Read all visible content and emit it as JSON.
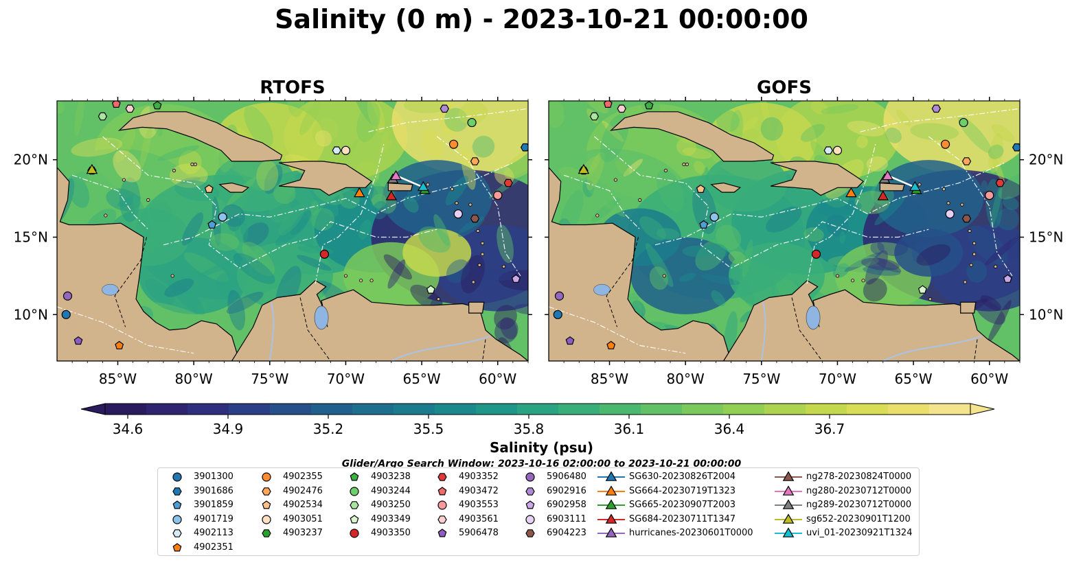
{
  "title": "Salinity (0 m) - 2023-10-21 00:00:00",
  "panels": [
    {
      "title": "RTOFS",
      "variant": "rtofs"
    },
    {
      "title": "GOFS",
      "variant": "gofs"
    }
  ],
  "lat_labels": [
    "10°N",
    "15°N",
    "20°N"
  ],
  "lon_labels": [
    "85°W",
    "80°W",
    "75°W",
    "70°W",
    "65°W",
    "60°W"
  ],
  "colorbar": {
    "label": "Salinity (psu)",
    "vmin": 34.6,
    "vmax": 36.7,
    "ticks": [
      "34.6",
      "34.9",
      "35.2",
      "35.5",
      "35.8",
      "36.1",
      "36.4",
      "36.7"
    ],
    "extend": "both",
    "colors": [
      "#2a1a5e",
      "#2f2470",
      "#2e307d",
      "#2b3f86",
      "#26508a",
      "#21608c",
      "#1e6e8d",
      "#1b7c8d",
      "#1b898b",
      "#209688",
      "#2ba282",
      "#3aae79",
      "#4cb86f",
      "#62c166",
      "#7bc95c",
      "#94cf55",
      "#adD350",
      "#c4d84e",
      "#d9dd56",
      "#eadf6c",
      "#f5e48e"
    ]
  },
  "search_window": "Glider/Argo Search Window: 2023-10-16 02:00:00 to 2023-10-21 00:00:00",
  "colors": {
    "land": "#d2b48c",
    "lake": "#8fb5e2",
    "river": "#a9c3e6",
    "ocean_deep": "#2a1a5e"
  },
  "legend": [
    {
      "label": "3901300",
      "marker": "circle",
      "color": "#1f77b4"
    },
    {
      "label": "3901686",
      "marker": "hexagon",
      "color": "#1f77b4"
    },
    {
      "label": "3901859",
      "marker": "pentagon",
      "color": "#4d9fd6"
    },
    {
      "label": "4901719",
      "marker": "circle",
      "color": "#8dc3ea"
    },
    {
      "label": "4902113",
      "marker": "hexagon",
      "color": "#d6eaf8"
    },
    {
      "label": "4902351",
      "marker": "pentagon",
      "color": "#ff7f0e"
    },
    {
      "label": "4902355",
      "marker": "circle",
      "color": "#ff8c2e"
    },
    {
      "label": "4902476",
      "marker": "hexagon",
      "color": "#ffa85c"
    },
    {
      "label": "4902534",
      "marker": "pentagon",
      "color": "#ffc08a"
    },
    {
      "label": "4903051",
      "marker": "circle",
      "color": "#ffe0c2"
    },
    {
      "label": "4903237",
      "marker": "hexagon",
      "color": "#2ca02c"
    },
    {
      "label": "4903238",
      "marker": "pentagon",
      "color": "#3cb043"
    },
    {
      "label": "4903244",
      "marker": "circle",
      "color": "#6ccf6c"
    },
    {
      "label": "4903250",
      "marker": "hexagon",
      "color": "#a8e6a0"
    },
    {
      "label": "4903349",
      "marker": "pentagon",
      "color": "#d8f5d0"
    },
    {
      "label": "4903350",
      "marker": "circle",
      "color": "#d62728"
    },
    {
      "label": "4903352",
      "marker": "hexagon",
      "color": "#e0393a"
    },
    {
      "label": "4903472",
      "marker": "pentagon",
      "color": "#f06a6a"
    },
    {
      "label": "4903553",
      "marker": "circle",
      "color": "#f79a9a"
    },
    {
      "label": "4903561",
      "marker": "hexagon",
      "color": "#fcd0d0"
    },
    {
      "label": "5906478",
      "marker": "pentagon",
      "color": "#8e5cc2"
    },
    {
      "label": "5906480",
      "marker": "circle",
      "color": "#9467bd"
    },
    {
      "label": "6902916",
      "marker": "hexagon",
      "color": "#b08ad6"
    },
    {
      "label": "6902958",
      "marker": "pentagon",
      "color": "#caa8ea"
    },
    {
      "label": "6903111",
      "marker": "circle",
      "color": "#e6d0f5"
    },
    {
      "label": "6904223",
      "marker": "hexagon",
      "color": "#8c564b"
    },
    {
      "label": "SG630-20230826T2004",
      "marker": "triangle",
      "color": "#1f77b4"
    },
    {
      "label": "SG664-20230719T1323",
      "marker": "triangle",
      "color": "#ff7f0e"
    },
    {
      "label": "SG665-20230907T2003",
      "marker": "triangle",
      "color": "#2ca02c"
    },
    {
      "label": "SG684-20230711T1347",
      "marker": "triangle",
      "color": "#d62728"
    },
    {
      "label": "hurricanes-20230601T0000",
      "marker": "triangle",
      "color": "#9467bd"
    },
    {
      "label": "ng278-20230824T0000",
      "marker": "triangle",
      "color": "#8c564b"
    },
    {
      "label": "ng280-20230712T0000",
      "marker": "triangle",
      "color": "#e377c2"
    },
    {
      "label": "ng289-20230712T0000",
      "marker": "triangle",
      "color": "#7f7f7f"
    },
    {
      "label": "sg652-20230901T1200",
      "marker": "triangle",
      "color": "#bcbd22"
    },
    {
      "label": "uvi_01-20230921T1324",
      "marker": "triangle",
      "color": "#17becf"
    }
  ]
}
